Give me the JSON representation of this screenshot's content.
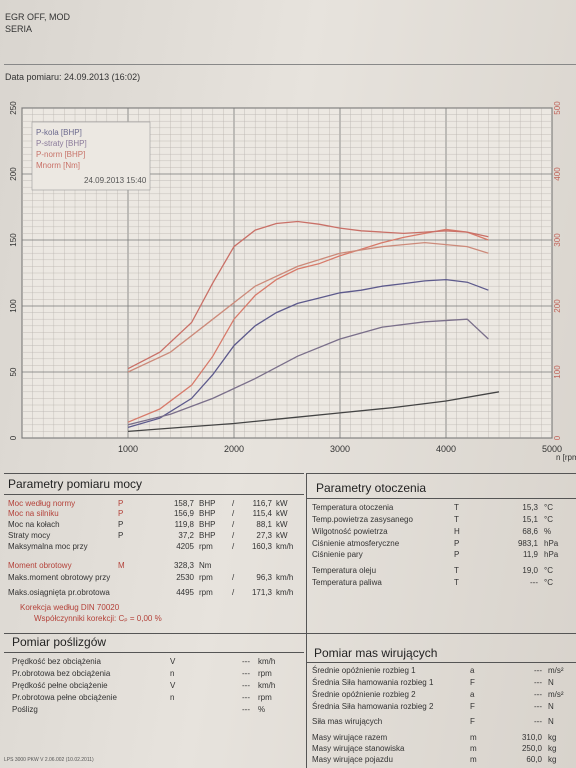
{
  "header": {
    "line1": "EGR OFF, MOD",
    "line2": "SERIA",
    "date_label": "Data pomiaru: 24.09.2013 (16:02)"
  },
  "chart_data": {
    "type": "line",
    "xlabel": "n [rpm]",
    "xlim": [
      0,
      5000
    ],
    "xticks": [
      1000,
      2000,
      3000,
      4000,
      5000
    ],
    "ylim_left": [
      0,
      250
    ],
    "yticks_left": [
      0,
      50,
      100,
      150,
      200,
      250
    ],
    "ylim_right": [
      0,
      500
    ],
    "yticks_right": [
      0,
      100,
      200,
      300,
      400,
      500
    ],
    "legend": [
      "P-kola [BHP]",
      "P-straty [BHP]",
      "P-norm [BHP]",
      "Mnorm [Nm]"
    ],
    "legend_date": "24.09.2013 15:40",
    "series": [
      {
        "name": "P-norm [BHP]",
        "color": "#d77a6a",
        "x": [
          1000,
          1300,
          1600,
          1800,
          2000,
          2200,
          2400,
          2600,
          2800,
          3000,
          3200,
          3400,
          3600,
          3800,
          4000,
          4200,
          4400
        ],
        "y": [
          12,
          22,
          40,
          62,
          90,
          108,
          120,
          128,
          132,
          138,
          143,
          148,
          152,
          155,
          158,
          156,
          150
        ]
      },
      {
        "name": "P-kola [BHP]",
        "color": "#5d5a8c",
        "x": [
          1000,
          1300,
          1600,
          1800,
          2000,
          2200,
          2400,
          2600,
          2800,
          3000,
          3200,
          3400,
          3600,
          3800,
          4000,
          4200,
          4400
        ],
        "y": [
          8,
          15,
          30,
          48,
          70,
          85,
          95,
          102,
          106,
          110,
          112,
          115,
          117,
          119,
          120,
          118,
          112
        ]
      },
      {
        "name": "P-straty [BHP]",
        "color": "#7a6f8a",
        "x": [
          1000,
          1400,
          1800,
          2200,
          2600,
          3000,
          3400,
          3800,
          4200,
          4400
        ],
        "y": [
          10,
          18,
          30,
          45,
          62,
          75,
          84,
          88,
          90,
          75
        ]
      },
      {
        "name": "Mnorm [Nm]",
        "color": "#c97067",
        "axis": "right",
        "x": [
          1000,
          1300,
          1600,
          1800,
          2000,
          2200,
          2400,
          2600,
          2800,
          3000,
          3200,
          3400,
          3600,
          3800,
          4000,
          4200,
          4400
        ],
        "y": [
          105,
          130,
          175,
          235,
          290,
          315,
          325,
          328,
          324,
          318,
          314,
          312,
          310,
          312,
          314,
          312,
          305
        ]
      },
      {
        "name": "",
        "color": "#cc8a7a",
        "x": [
          1000,
          1400,
          1800,
          2200,
          2600,
          3000,
          3400,
          3800,
          4200,
          4400
        ],
        "y": [
          50,
          65,
          90,
          115,
          130,
          140,
          145,
          148,
          145,
          140
        ]
      },
      {
        "name": "",
        "color": "#444444",
        "x": [
          1000,
          1500,
          2000,
          2500,
          3000,
          3500,
          4000,
          4500
        ],
        "y": [
          5,
          8,
          11,
          15,
          19,
          23,
          28,
          35
        ]
      }
    ]
  },
  "moc": {
    "title": "Parametry pomiaru mocy",
    "rows": [
      {
        "label": "Moc według normy",
        "sym": "P",
        "v1": "158,7",
        "u1": "BHP",
        "v2": "116,7",
        "u2": "kW",
        "red": true
      },
      {
        "label": "Moc na silniku",
        "sym": "P",
        "v1": "156,9",
        "u1": "BHP",
        "v2": "115,4",
        "u2": "kW",
        "red": true
      },
      {
        "label": "Moc na kołach",
        "sym": "P",
        "v1": "119,8",
        "u1": "BHP",
        "v2": "88,1",
        "u2": "kW",
        "red": false
      },
      {
        "label": "Straty mocy",
        "sym": "P",
        "v1": "37,2",
        "u1": "BHP",
        "v2": "27,3",
        "u2": "kW",
        "red": false
      },
      {
        "label": "Maksymalna moc przy",
        "sym": "",
        "v1": "4205",
        "u1": "rpm",
        "v2": "160,3",
        "u2": "km/h",
        "red": false
      },
      {
        "label": "Moment obrotowy",
        "sym": "M",
        "v1": "328,3",
        "u1": "Nm",
        "v2": "",
        "u2": "",
        "red": true
      },
      {
        "label": "Maks.moment obrotowy przy",
        "sym": "",
        "v1": "2530",
        "u1": "rpm",
        "v2": "96,3",
        "u2": "km/h",
        "red": false
      },
      {
        "label": "Maks.osiągnięta pr.obrotowa",
        "sym": "",
        "v1": "4495",
        "u1": "rpm",
        "v2": "171,3",
        "u2": "km/h",
        "red": false
      }
    ],
    "note1": "Korekcja według DIN 70020",
    "note2": "Współczynniki korekcji: Cₚ = 0,00 %"
  },
  "otoczenie": {
    "title": "Parametry otoczenia",
    "rows": [
      {
        "label": "Temperatura otoczenia",
        "sym": "T",
        "val": "15,3",
        "unit": "°C"
      },
      {
        "label": "Temp.powietrza zasysanego",
        "sym": "T",
        "val": "15,1",
        "unit": "°C"
      },
      {
        "label": "Wilgotność powietrza",
        "sym": "H",
        "val": "68,6",
        "unit": "%"
      },
      {
        "label": "Ciśnienie atmosferyczne",
        "sym": "P",
        "val": "983,1",
        "unit": "hPa"
      },
      {
        "label": "Ciśnienie pary",
        "sym": "P",
        "val": "11,9",
        "unit": "hPa"
      },
      {
        "label": "Temperatura oleju",
        "sym": "T",
        "val": "19,0",
        "unit": "°C"
      },
      {
        "label": "Temperatura paliwa",
        "sym": "T",
        "val": "---",
        "unit": "°C"
      }
    ]
  },
  "poslizg": {
    "title": "Pomiar poślizgów",
    "rows": [
      {
        "label": "Prędkość bez obciążenia",
        "sym": "V",
        "val": "---",
        "unit": "km/h"
      },
      {
        "label": "Pr.obrotowa bez obciążenia",
        "sym": "n",
        "val": "---",
        "unit": "rpm"
      },
      {
        "label": "Prędkość pełne obciążenie",
        "sym": "V",
        "val": "---",
        "unit": "km/h"
      },
      {
        "label": "Pr.obrotowa pełne obciążenie",
        "sym": "n",
        "val": "---",
        "unit": "rpm"
      },
      {
        "label": "Poślizg",
        "sym": "",
        "val": "---",
        "unit": "%"
      }
    ]
  },
  "masy": {
    "title": "Pomiar mas wirujących",
    "rows": [
      {
        "label": "Średnie opóźnienie rozbieg 1",
        "sym": "a",
        "val": "---",
        "unit": "m/s²"
      },
      {
        "label": "Średnia Siła hamowania rozbieg 1",
        "sym": "F",
        "val": "---",
        "unit": "N"
      },
      {
        "label": "Średnie opóźnienie rozbieg 2",
        "sym": "a",
        "val": "---",
        "unit": "m/s²"
      },
      {
        "label": "Średnia Siła hamowania rozbieg 2",
        "sym": "F",
        "val": "---",
        "unit": "N"
      },
      {
        "label": "Siła mas wirujących",
        "sym": "F",
        "val": "---",
        "unit": "N"
      },
      {
        "label": "Masy wirujące razem",
        "sym": "m",
        "val": "310,0",
        "unit": "kg"
      },
      {
        "label": "Masy wirujące stanowiska",
        "sym": "m",
        "val": "250,0",
        "unit": "kg"
      },
      {
        "label": "Masy wirujące pojazdu",
        "sym": "m",
        "val": "60,0",
        "unit": "kg"
      }
    ]
  },
  "footer": "LPS 3000 PKW V 2.06.002 (10.02.2011)"
}
